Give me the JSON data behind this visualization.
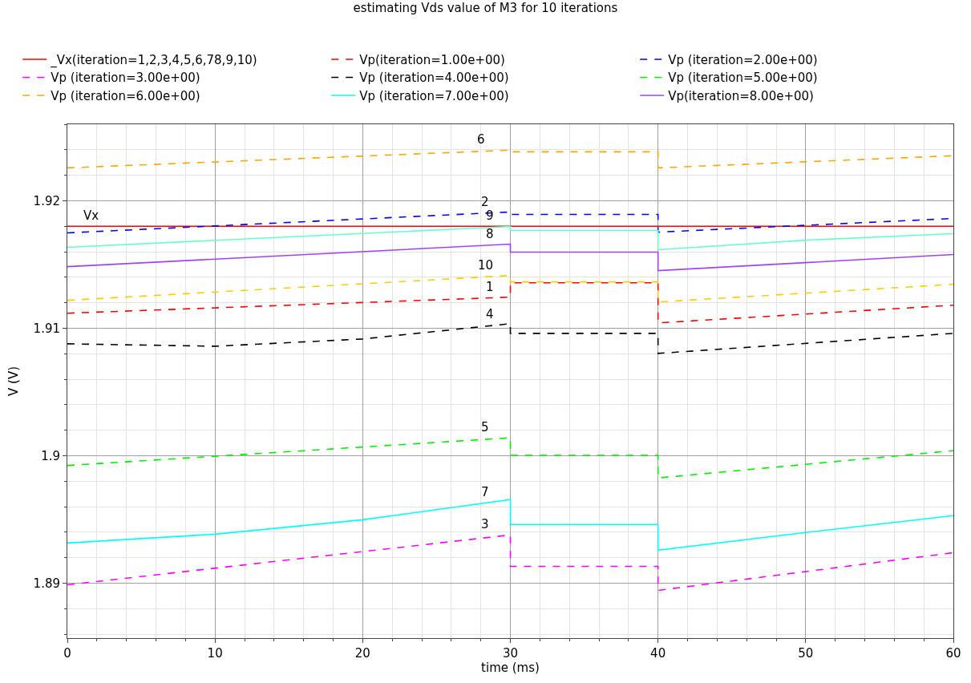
{
  "chart_data": {
    "type": "line",
    "title": "estimating Vds value of M3 for 10 iterations",
    "xlabel": "time (ms)",
    "ylabel": "V (V)",
    "xlim": [
      0,
      60
    ],
    "xticks": [
      0,
      10,
      20,
      30,
      40,
      50,
      60
    ],
    "ylim": [
      1.8857,
      1.926
    ],
    "yticks": [
      1.89,
      1.9,
      1.91,
      1.92
    ],
    "grid": true,
    "legend": "top",
    "marker": "none",
    "series": [
      {
        "name": "_Vx(iteration=1,2,3,4,5,6,78,9,10)",
        "color": "#ff0000",
        "line_style": "solid",
        "x": [
          0,
          60
        ],
        "values": [
          1.918,
          1.918
        ]
      },
      {
        "name": "Vp(iteration=1.00e+00)",
        "color": "#ff0000",
        "line_style": "dashed",
        "x": [
          0,
          30,
          30,
          40,
          40,
          60
        ],
        "values": [
          1.91118,
          1.91244,
          1.91357,
          1.91357,
          1.91042,
          1.91181
        ]
      },
      {
        "name": "Vp (iteration=2.00e+00)",
        "color": "#0000ff",
        "line_style": "dashed",
        "x": [
          0,
          30,
          30,
          40,
          40,
          60
        ],
        "values": [
          1.91748,
          1.91912,
          1.91893,
          1.91893,
          1.91754,
          1.91861
        ]
      },
      {
        "name": "Vp (iteration=3.00e+00)",
        "color": "#ff00ff",
        "line_style": "dashed",
        "x": [
          0,
          30,
          30,
          40,
          40,
          60
        ],
        "values": [
          1.88988,
          1.89379,
          1.89133,
          1.89133,
          1.88944,
          1.8924
        ]
      },
      {
        "name": "Vp (iteration=4.00e+00)",
        "color": "#000000",
        "line_style": "dashed",
        "x": [
          0,
          10,
          20,
          30,
          30,
          40,
          40,
          60
        ],
        "values": [
          1.90878,
          1.90859,
          1.90916,
          1.91036,
          1.9096,
          1.9096,
          1.90803,
          1.9096
        ]
      },
      {
        "name": "Vp (iteration=5.00e+00)",
        "color": "#00ee00",
        "line_style": "dashed",
        "x": [
          0,
          30,
          30,
          40,
          40,
          60
        ],
        "values": [
          1.89924,
          1.90141,
          1.90003,
          1.90003,
          1.89826,
          1.9004
        ]
      },
      {
        "name": "Vp (iteration=6.00e+00)",
        "color": "#ffa500",
        "line_style": "dashed",
        "x": [
          0,
          30,
          30,
          40,
          40,
          60
        ],
        "values": [
          1.92258,
          1.92397,
          1.92384,
          1.92384,
          1.92258,
          1.92353
        ]
      },
      {
        "name": "Vp (iteration=7.00e+00)",
        "color": "#00ffff",
        "line_style": "solid",
        "x": [
          0,
          10,
          20,
          30,
          30,
          40,
          40,
          50,
          60
        ],
        "values": [
          1.89316,
          1.89385,
          1.89498,
          1.89656,
          1.89461,
          1.89461,
          1.89259,
          1.89398,
          1.8953
        ]
      },
      {
        "name": "Vp(iteration=8.00e+00)",
        "color": "#a040ff",
        "line_style": "solid",
        "x": [
          0,
          30,
          30,
          40,
          40,
          60
        ],
        "values": [
          1.91483,
          1.9166,
          1.91597,
          1.91597,
          1.91452,
          1.91578
        ]
      },
      {
        "color": "#66ffcc",
        "line_style": "solid",
        "x": [
          0,
          30,
          30,
          40,
          40,
          50,
          60
        ],
        "values": [
          1.91635,
          1.91798,
          1.91767,
          1.91767,
          1.91616,
          1.91691,
          1.91742
        ]
      },
      {
        "color": "#ffcc00",
        "line_style": "dashed",
        "x": [
          0,
          30,
          30,
          40,
          40,
          60
        ],
        "values": [
          1.91219,
          1.91414,
          1.91364,
          1.91364,
          1.91206,
          1.91345
        ]
      }
    ],
    "annotations": [
      {
        "text": "Vx",
        "x": 1,
        "y": 1.918
      },
      {
        "text": "6",
        "x": 28,
        "y": 1.924
      },
      {
        "text": "2",
        "x": 28.3,
        "y": 1.9191
      },
      {
        "text": "9",
        "x": 28.6,
        "y": 1.918
      },
      {
        "text": "8",
        "x": 28.6,
        "y": 1.9166
      },
      {
        "text": "10",
        "x": 28.3,
        "y": 1.9141
      },
      {
        "text": "1",
        "x": 28.6,
        "y": 1.9124
      },
      {
        "text": "4",
        "x": 28.6,
        "y": 1.9103
      },
      {
        "text": "5",
        "x": 28.3,
        "y": 1.9014
      },
      {
        "text": "7",
        "x": 28.3,
        "y": 1.8963
      },
      {
        "text": "3",
        "x": 28.3,
        "y": 1.8938
      }
    ]
  }
}
